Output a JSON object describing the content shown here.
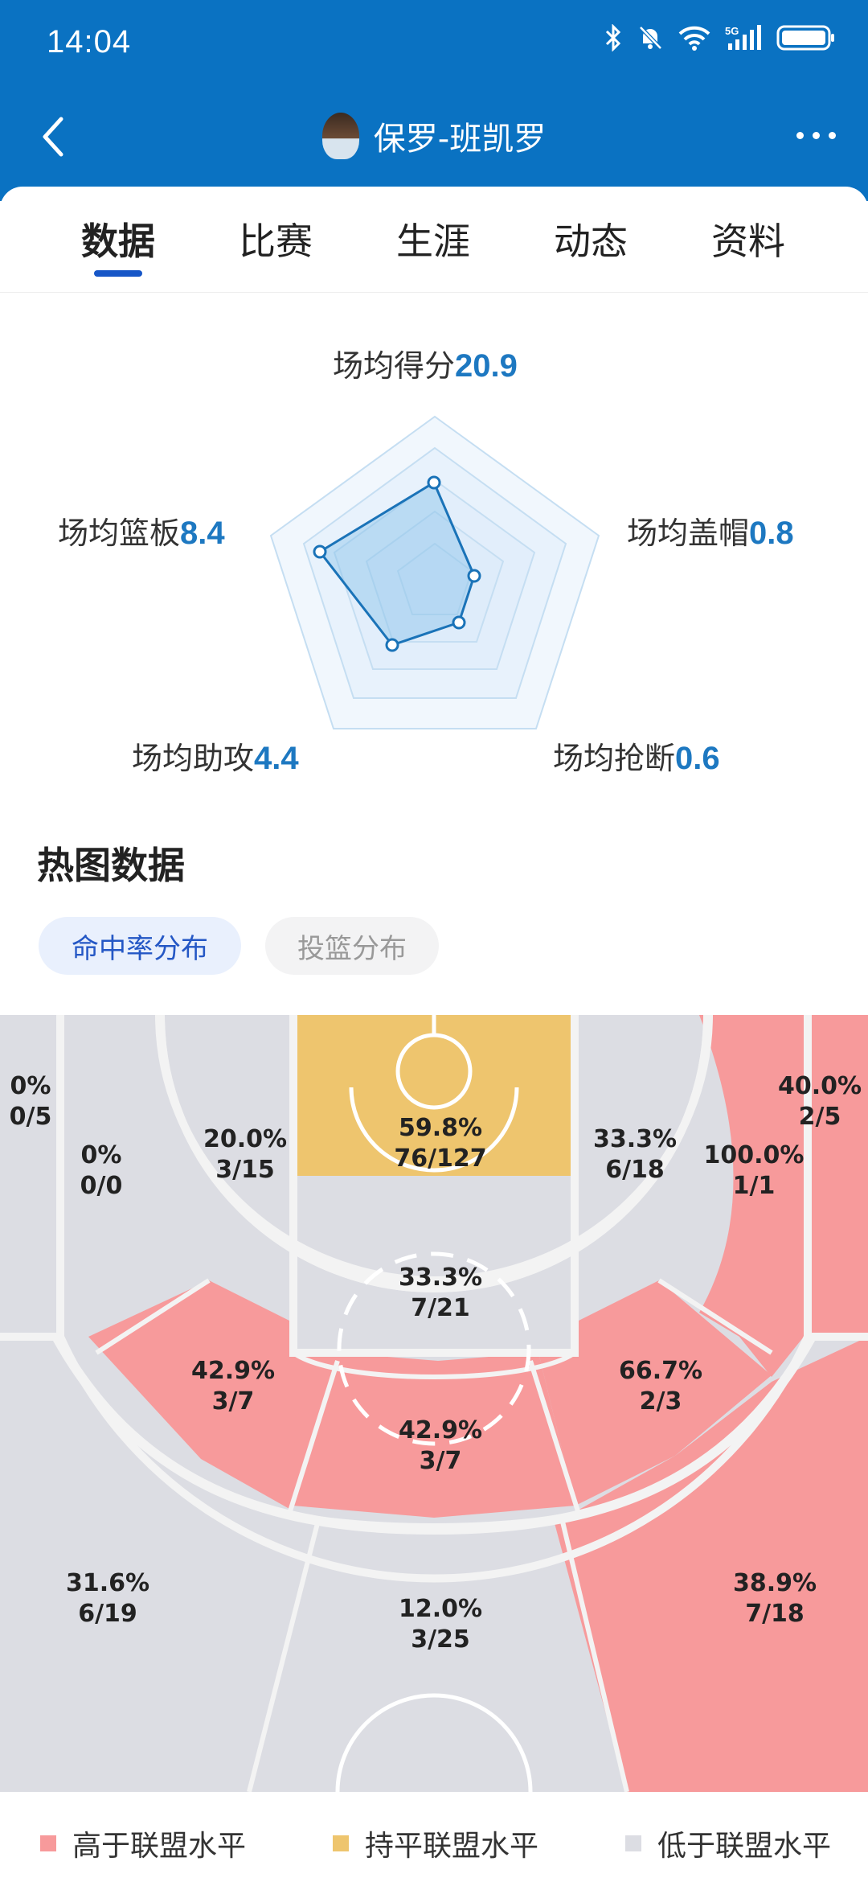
{
  "status": {
    "time": "14:04"
  },
  "header": {
    "title": "保罗-班凯罗"
  },
  "tabs": [
    "数据",
    "比赛",
    "生涯",
    "动态",
    "资料"
  ],
  "radar": {
    "points": {
      "pts": {
        "label": "场均得分",
        "value": "20.9"
      },
      "blk": {
        "label": "场均盖帽",
        "value": "0.8"
      },
      "stl": {
        "label": "场均抢断",
        "value": "0.6"
      },
      "ast": {
        "label": "场均助攻",
        "value": "4.4"
      },
      "reb": {
        "label": "场均篮板",
        "value": "8.4"
      }
    }
  },
  "heat": {
    "title": "热图数据",
    "pills": [
      "命中率分布",
      "投篮分布"
    ],
    "zones": [
      {
        "id": "left-corner",
        "pct": "0%",
        "frac": "0/5"
      },
      {
        "id": "left-base-mid",
        "pct": "0%",
        "frac": "0/0"
      },
      {
        "id": "left-elbow",
        "pct": "20.0%",
        "frac": "3/15"
      },
      {
        "id": "restricted",
        "pct": "59.8%",
        "frac": "76/127"
      },
      {
        "id": "right-elbow",
        "pct": "33.3%",
        "frac": "6/18"
      },
      {
        "id": "right-corner",
        "pct": "40.0%",
        "frac": "2/5"
      },
      {
        "id": "right-base-mid",
        "pct": "100.0%",
        "frac": "1/1"
      },
      {
        "id": "paint",
        "pct": "33.3%",
        "frac": "7/21"
      },
      {
        "id": "left-wing-mid",
        "pct": "42.9%",
        "frac": "3/7"
      },
      {
        "id": "top-mid",
        "pct": "42.9%",
        "frac": "3/7"
      },
      {
        "id": "right-wing-mid",
        "pct": "66.7%",
        "frac": "2/3"
      },
      {
        "id": "left-wing-three",
        "pct": "31.6%",
        "frac": "6/19"
      },
      {
        "id": "top-three",
        "pct": "12.0%",
        "frac": "3/25"
      },
      {
        "id": "right-wing-three",
        "pct": "38.9%",
        "frac": "7/18"
      }
    ],
    "legend": [
      "高于联盟水平",
      "持平联盟水平",
      "低于联盟水平"
    ],
    "colors": {
      "above": "#f79a9b",
      "equal": "#eec56e",
      "below": "#dcdde3"
    }
  }
}
